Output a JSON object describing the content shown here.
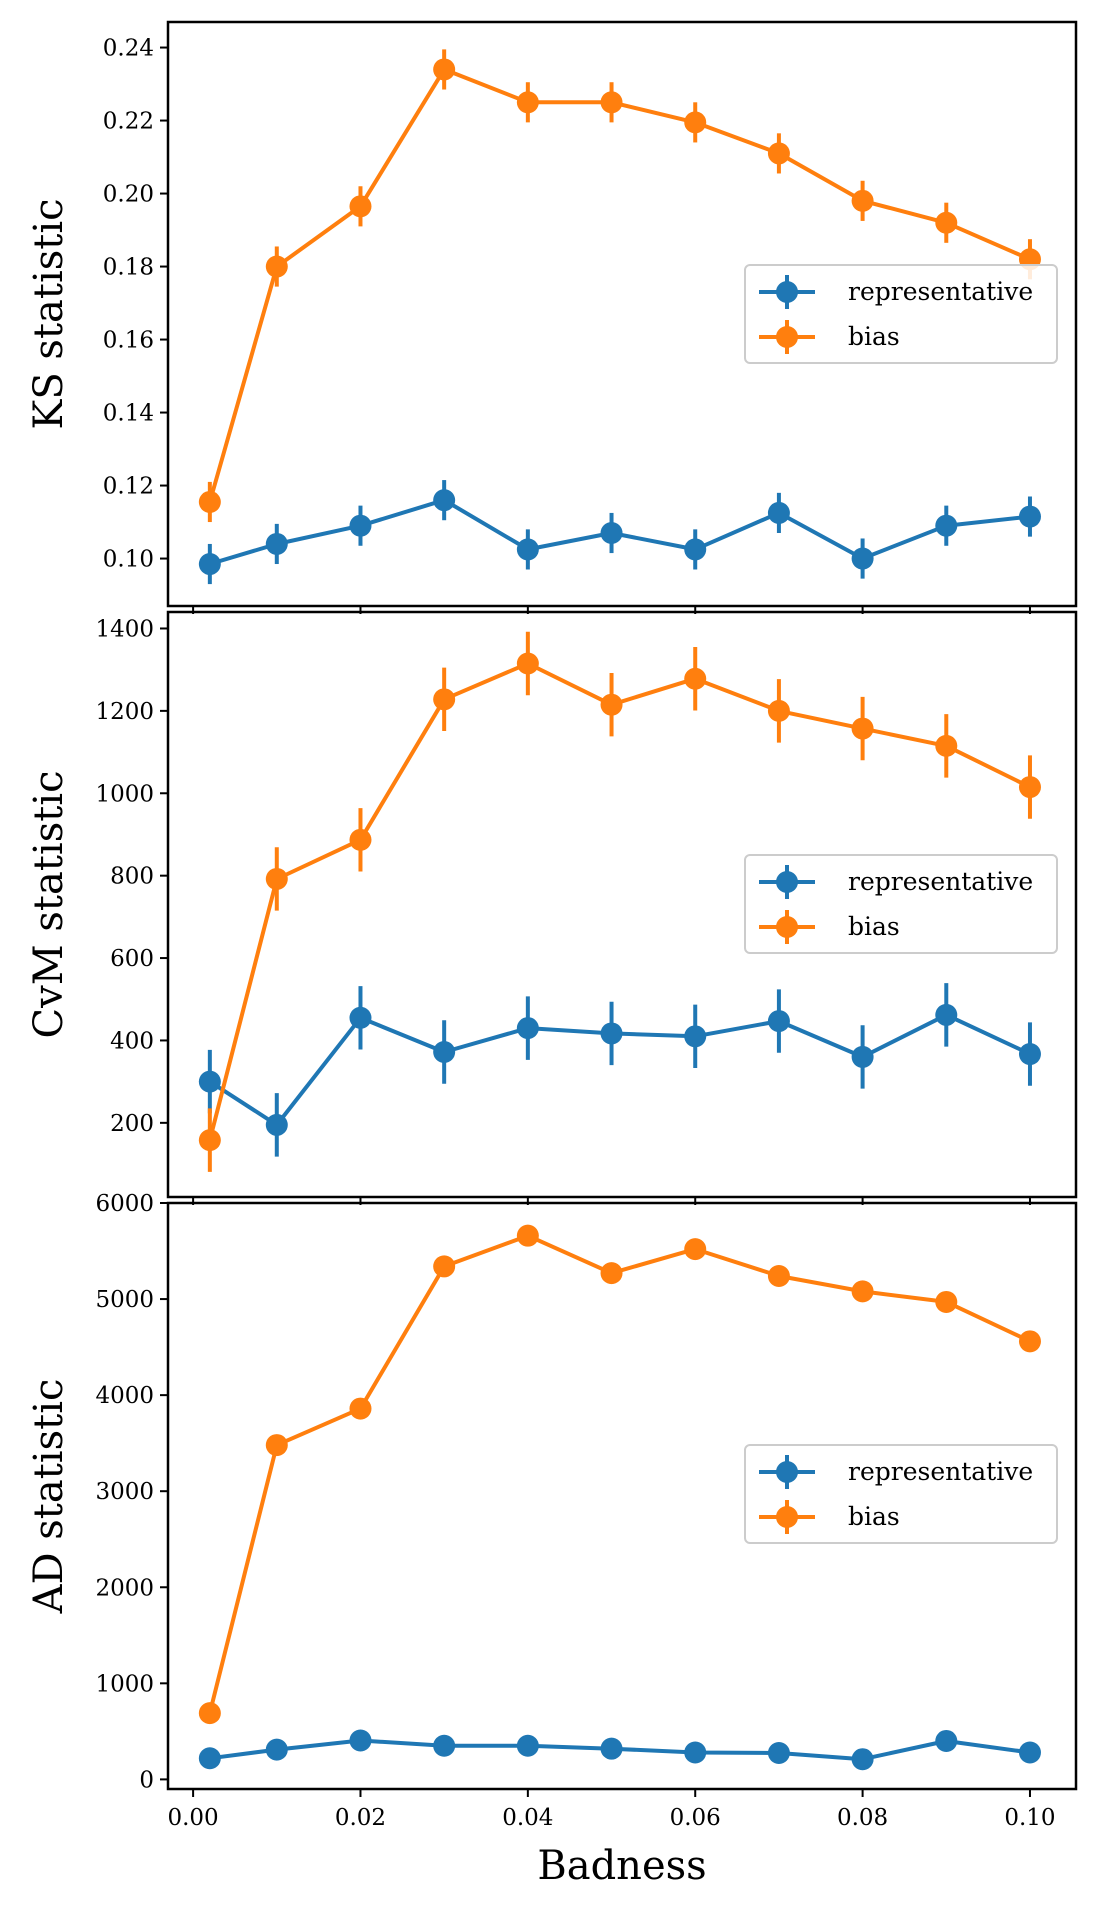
{
  "chart_data": [
    {
      "type": "line",
      "ylabel": "KS statistic",
      "xlabel": "",
      "ylim": [
        0.087,
        0.247
      ],
      "yticks": [
        0.1,
        0.12,
        0.14,
        0.16,
        0.18,
        0.2,
        0.22,
        0.24
      ],
      "ytick_labels": [
        "0.10",
        "0.12",
        "0.14",
        "0.16",
        "0.18",
        "0.20",
        "0.22",
        "0.24"
      ],
      "legend_position": "center-right",
      "series": [
        {
          "name": "representative",
          "color": "#1f77b4",
          "x": [
            0.002,
            0.01,
            0.02,
            0.03,
            0.04,
            0.05,
            0.06,
            0.07,
            0.08,
            0.09,
            0.1
          ],
          "values": [
            0.0985,
            0.104,
            0.109,
            0.116,
            0.1025,
            0.107,
            0.1025,
            0.1125,
            0.1,
            0.109,
            0.1115
          ],
          "errors": [
            0.0055,
            0.0055,
            0.0055,
            0.0055,
            0.0055,
            0.0055,
            0.0055,
            0.0055,
            0.0055,
            0.0055,
            0.0055
          ]
        },
        {
          "name": "bias",
          "color": "#ff7f0e",
          "x": [
            0.002,
            0.01,
            0.02,
            0.03,
            0.04,
            0.05,
            0.06,
            0.07,
            0.08,
            0.09,
            0.1
          ],
          "values": [
            0.1155,
            0.18,
            0.1965,
            0.234,
            0.225,
            0.225,
            0.2195,
            0.211,
            0.198,
            0.192,
            0.182
          ],
          "errors": [
            0.0055,
            0.0055,
            0.0055,
            0.0055,
            0.0055,
            0.0055,
            0.0055,
            0.0055,
            0.0055,
            0.0055,
            0.0055
          ]
        }
      ]
    },
    {
      "type": "line",
      "ylabel": "CvM statistic",
      "xlabel": "",
      "ylim": [
        20,
        1440
      ],
      "yticks": [
        200,
        400,
        600,
        800,
        1000,
        1200,
        1400
      ],
      "ytick_labels": [
        "200",
        "400",
        "600",
        "800",
        "1000",
        "1200",
        "1400"
      ],
      "legend_position": "center-right",
      "series": [
        {
          "name": "representative",
          "color": "#1f77b4",
          "x": [
            0.002,
            0.01,
            0.02,
            0.03,
            0.04,
            0.05,
            0.06,
            0.07,
            0.08,
            0.09,
            0.1
          ],
          "values": [
            300,
            195,
            455,
            372,
            430,
            417,
            410,
            447,
            360,
            462,
            367
          ],
          "errors": [
            77,
            77,
            77,
            77,
            77,
            77,
            77,
            77,
            77,
            77,
            77
          ]
        },
        {
          "name": "bias",
          "color": "#ff7f0e",
          "x": [
            0.002,
            0.01,
            0.02,
            0.03,
            0.04,
            0.05,
            0.06,
            0.07,
            0.08,
            0.09,
            0.1
          ],
          "values": [
            158,
            792,
            887,
            1228,
            1315,
            1215,
            1278,
            1200,
            1157,
            1115,
            1015
          ],
          "errors": [
            77,
            77,
            77,
            77,
            77,
            77,
            77,
            77,
            77,
            77,
            77
          ]
        }
      ]
    },
    {
      "type": "line",
      "ylabel": "AD statistic",
      "xlabel": "Badness",
      "ylim": [
        -100,
        6000
      ],
      "yticks": [
        0,
        1000,
        2000,
        3000,
        4000,
        5000,
        6000
      ],
      "ytick_labels": [
        "0",
        "1000",
        "2000",
        "3000",
        "4000",
        "5000",
        "6000"
      ],
      "xticks": [
        0.0,
        0.02,
        0.04,
        0.06,
        0.08,
        0.1
      ],
      "xtick_labels": [
        "0.00",
        "0.02",
        "0.04",
        "0.06",
        "0.08",
        "0.10"
      ],
      "legend_position": "center-right",
      "series": [
        {
          "name": "representative",
          "color": "#1f77b4",
          "x": [
            0.002,
            0.01,
            0.02,
            0.03,
            0.04,
            0.05,
            0.06,
            0.07,
            0.08,
            0.09,
            0.1
          ],
          "values": [
            220,
            310,
            405,
            350,
            350,
            320,
            280,
            275,
            210,
            400,
            280
          ],
          "errors": [
            0,
            0,
            0,
            0,
            0,
            0,
            0,
            0,
            0,
            0,
            0
          ]
        },
        {
          "name": "bias",
          "color": "#ff7f0e",
          "x": [
            0.002,
            0.01,
            0.02,
            0.03,
            0.04,
            0.05,
            0.06,
            0.07,
            0.08,
            0.09,
            0.1
          ],
          "values": [
            690,
            3480,
            3860,
            5340,
            5660,
            5270,
            5520,
            5240,
            5080,
            4970,
            4560
          ],
          "errors": [
            0,
            0,
            0,
            0,
            0,
            0,
            0,
            0,
            0,
            0,
            0
          ]
        }
      ]
    }
  ],
  "x_axis": {
    "xlim": [
      -0.003,
      0.1055
    ]
  }
}
